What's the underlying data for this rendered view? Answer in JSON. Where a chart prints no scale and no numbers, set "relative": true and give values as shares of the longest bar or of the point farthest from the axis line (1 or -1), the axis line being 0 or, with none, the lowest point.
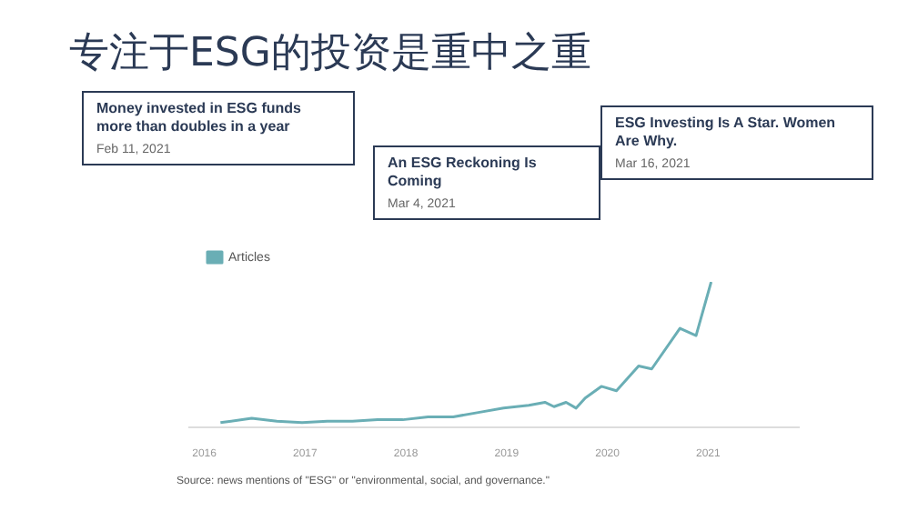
{
  "chart_data": {
    "type": "line",
    "title": "专注于ESG的投资是重中之重",
    "relative": true,
    "xlim": [
      2015.85,
      2021.9
    ],
    "xticks": [
      2016,
      2017,
      2018,
      2019,
      2020,
      2021
    ],
    "legend": "top left",
    "marker": "none",
    "series": [
      {
        "name": "Articles",
        "color": "#6aaeb5",
        "x": [
          2016.16,
          2016.47,
          2016.72,
          2016.97,
          2017.22,
          2017.47,
          2017.72,
          2017.97,
          2018.22,
          2018.47,
          2018.72,
          2018.97,
          2019.22,
          2019.38,
          2019.47,
          2019.59,
          2019.69,
          2019.78,
          2019.94,
          2020.09,
          2020.31,
          2020.44,
          2020.72,
          2020.88,
          2021.03
        ],
        "values": [
          0.03,
          0.06,
          0.04,
          0.03,
          0.04,
          0.04,
          0.05,
          0.05,
          0.07,
          0.07,
          0.1,
          0.13,
          0.15,
          0.17,
          0.14,
          0.17,
          0.13,
          0.2,
          0.28,
          0.25,
          0.42,
          0.4,
          0.68,
          0.63,
          1
        ]
      }
    ],
    "annotations": [
      "Money invested in ESG funds more than doubles in a year",
      "Feb 11, 2021",
      "An ESG Reckoning Is Coming",
      "Mar 4, 2021",
      "ESG Investing Is A Star. Women Are Why.",
      "Mar 16, 2021",
      "Source: news mentions of \"ESG\" or \"environmental, social, and governance.\""
    ]
  }
}
